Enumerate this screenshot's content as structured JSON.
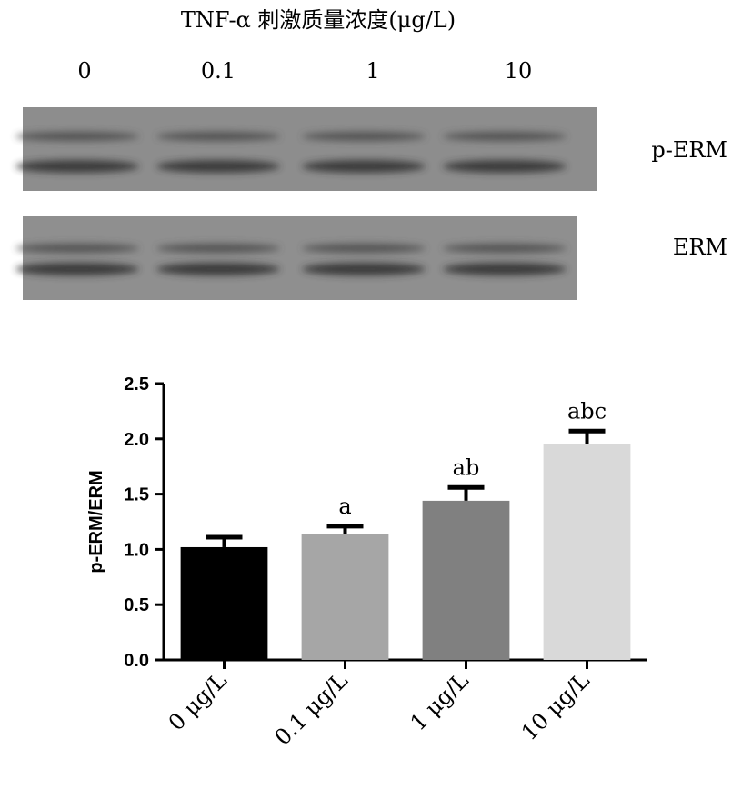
{
  "blot": {
    "title": "TNF-α 刺激质量浓度(μg/L)",
    "lanes": [
      "0",
      "0.1",
      "1",
      "10"
    ],
    "rows": [
      "p-ERM",
      "ERM"
    ]
  },
  "chart_data": {
    "type": "bar",
    "ylabel": "p-ERM/ERM",
    "categories": [
      "0 μg/L",
      "0.1 μg/L",
      "1 μg/L",
      "10 μg/L"
    ],
    "values": [
      1.02,
      1.14,
      1.44,
      1.95
    ],
    "errors": [
      0.09,
      0.07,
      0.12,
      0.12
    ],
    "colors": [
      "#000000",
      "#a6a6a6",
      "#808080",
      "#d9d9d9"
    ],
    "annotations": [
      null,
      "a",
      "ab",
      "abc"
    ],
    "ylim": [
      0,
      2.5
    ],
    "yticks": [
      {
        "value": 0,
        "label": "0.0"
      },
      0.5,
      {
        "value": 1,
        "label": "1.0"
      },
      1.5,
      {
        "value": 2,
        "label": "2.0"
      },
      2.5
    ]
  }
}
